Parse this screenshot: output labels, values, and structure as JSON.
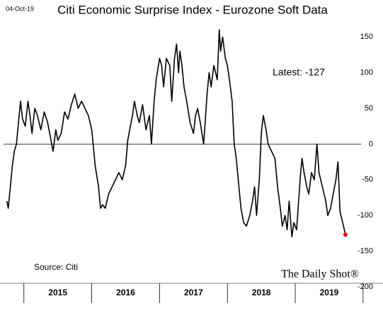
{
  "chart_data": {
    "type": "line",
    "title": "Citi Economic Surprise Index - Eurozone Soft Data",
    "date": "04-Oct-19",
    "annotation": "Latest:  -127",
    "source": "Source: Citi",
    "brand": "The Daily Shot®",
    "ylim": [
      -200,
      170
    ],
    "yticks": [
      -200,
      -150,
      -100,
      -50,
      0,
      50,
      100,
      150
    ],
    "xlim": [
      2014.7,
      2019.97
    ],
    "xticks": [
      {
        "value": 2015.5,
        "label": "2015"
      },
      {
        "value": 2016.5,
        "label": "2016"
      },
      {
        "value": 2017.5,
        "label": "2017"
      },
      {
        "value": 2018.5,
        "label": "2018"
      },
      {
        "value": 2019.5,
        "label": "2019"
      }
    ],
    "zero_line": true,
    "highlight_color": "#e8141e",
    "x": [
      2014.75,
      2014.77,
      2014.8,
      2014.83,
      2014.86,
      2014.89,
      2014.92,
      2014.95,
      2014.98,
      2015.02,
      2015.06,
      2015.09,
      2015.12,
      2015.16,
      2015.2,
      2015.25,
      2015.3,
      2015.35,
      2015.4,
      2015.43,
      2015.47,
      2015.5,
      2015.55,
      2015.6,
      2015.65,
      2015.7,
      2015.75,
      2015.8,
      2015.85,
      2015.9,
      2015.95,
      2016.0,
      2016.05,
      2016.1,
      2016.13,
      2016.16,
      2016.2,
      2016.25,
      2016.3,
      2016.35,
      2016.4,
      2016.45,
      2016.5,
      2016.53,
      2016.56,
      2016.6,
      2016.63,
      2016.67,
      2016.7,
      2016.75,
      2016.8,
      2016.85,
      2016.88,
      2016.92,
      2016.95,
      2017.0,
      2017.03,
      2017.06,
      2017.1,
      2017.15,
      2017.18,
      2017.22,
      2017.25,
      2017.28,
      2017.3,
      2017.33,
      2017.36,
      2017.4,
      2017.45,
      2017.5,
      2017.53,
      2017.56,
      2017.6,
      2017.65,
      2017.7,
      2017.73,
      2017.76,
      2017.8,
      2017.85,
      2017.88,
      2017.9,
      2017.93,
      2017.97,
      2018.0,
      2018.03,
      2018.07,
      2018.1,
      2018.13,
      2018.17,
      2018.2,
      2018.24,
      2018.28,
      2018.33,
      2018.37,
      2018.4,
      2018.43,
      2018.47,
      2018.5,
      2018.53,
      2018.57,
      2018.6,
      2018.65,
      2018.7,
      2018.74,
      2018.78,
      2018.81,
      2018.85,
      2018.88,
      2018.91,
      2018.95,
      2018.98,
      2019.02,
      2019.05,
      2019.08,
      2019.1,
      2019.13,
      2019.17,
      2019.2,
      2019.24,
      2019.28,
      2019.32,
      2019.35,
      2019.4,
      2019.45,
      2019.48,
      2019.52,
      2019.56,
      2019.6,
      2019.63,
      2019.66,
      2019.7,
      2019.74
    ],
    "series": [
      {
        "name": "Eurozone Soft Data",
        "color": "#000000",
        "values": [
          -80,
          -90,
          -60,
          -30,
          -10,
          0,
          30,
          60,
          35,
          25,
          60,
          40,
          15,
          50,
          40,
          20,
          45,
          30,
          5,
          -10,
          20,
          5,
          15,
          45,
          35,
          55,
          70,
          50,
          60,
          50,
          40,
          20,
          -30,
          -60,
          -90,
          -85,
          -90,
          -70,
          -60,
          -50,
          -40,
          -50,
          -30,
          5,
          20,
          40,
          60,
          40,
          30,
          55,
          20,
          40,
          0,
          60,
          90,
          120,
          110,
          80,
          120,
          110,
          60,
          120,
          140,
          100,
          130,
          110,
          80,
          60,
          30,
          15,
          40,
          50,
          30,
          0,
          70,
          100,
          80,
          110,
          90,
          160,
          130,
          150,
          120,
          110,
          90,
          60,
          0,
          -20,
          -60,
          -90,
          -110,
          -115,
          -100,
          -80,
          -60,
          -100,
          -50,
          15,
          40,
          20,
          0,
          -10,
          -20,
          -60,
          -90,
          -115,
          -100,
          -120,
          -80,
          -130,
          -110,
          -120,
          -80,
          -40,
          -20,
          -40,
          -60,
          -70,
          -40,
          -50,
          0,
          -40,
          -60,
          -80,
          -100,
          -90,
          -70,
          -50,
          -25,
          -95,
          -110,
          -127
        ]
      }
    ]
  }
}
